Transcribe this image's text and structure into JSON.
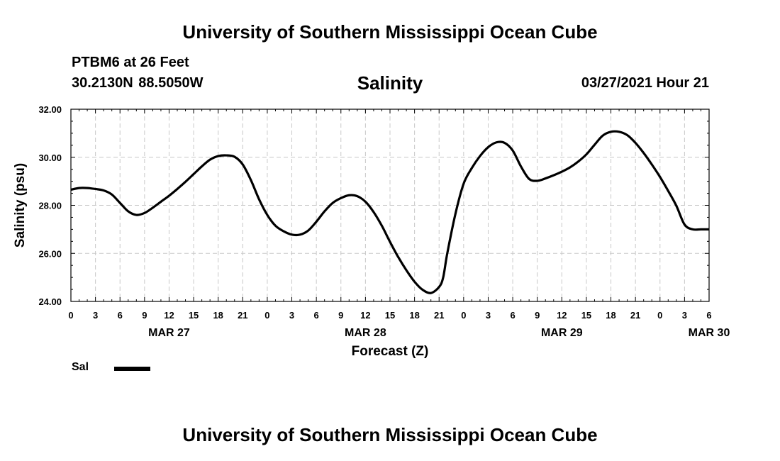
{
  "header": {
    "title": "University of Southern Mississippi Ocean Cube",
    "station_name": "PTBM6 at 26 Feet",
    "station_coords": "30.2130N  88.5050W",
    "chart_title": "Salinity",
    "date_label": "03/27/2021 Hour 21"
  },
  "footer": {
    "title": "University of Southern Mississippi Ocean Cube"
  },
  "legend": {
    "label": "Sal",
    "color": "#000000"
  },
  "chart_data": {
    "type": "line",
    "title": "Salinity",
    "xlabel": "Forecast (Z)",
    "ylabel": "Salinity (psu)",
    "xlim": [
      0,
      78
    ],
    "ylim": [
      24,
      32
    ],
    "y_ticks": [
      24,
      26,
      28,
      30,
      32
    ],
    "y_tick_labels": [
      "24.00",
      "26.00",
      "28.00",
      "30.00",
      "32.00"
    ],
    "x_tick_hours": [
      0,
      3,
      6,
      9,
      12,
      15,
      18,
      21,
      24,
      27,
      30,
      33,
      36,
      39,
      42,
      45,
      48,
      51,
      54,
      57,
      60,
      63,
      66,
      69,
      72,
      75,
      78
    ],
    "x_tick_labels": [
      "0",
      "3",
      "6",
      "9",
      "12",
      "15",
      "18",
      "21",
      "0",
      "3",
      "6",
      "9",
      "12",
      "15",
      "18",
      "21",
      "0",
      "3",
      "6",
      "9",
      "12",
      "15",
      "18",
      "21",
      "0",
      "3",
      "6"
    ],
    "date_labels": [
      {
        "hour": 12,
        "label": "MAR 27"
      },
      {
        "hour": 36,
        "label": "MAR 28"
      },
      {
        "hour": 60,
        "label": "MAR 29"
      },
      {
        "hour": 78,
        "label": "MAR 30"
      }
    ],
    "grid": true,
    "legend_position": "bottom-left",
    "series": [
      {
        "name": "Sal",
        "color": "#000000",
        "x": [
          0,
          1,
          2,
          3,
          4,
          5,
          6,
          7,
          8,
          9,
          10,
          11,
          12,
          13,
          14,
          15,
          16,
          17,
          18,
          19,
          20,
          21,
          22,
          23,
          24,
          25,
          26,
          27,
          28,
          29,
          30,
          31,
          32,
          33,
          34,
          35,
          36,
          37,
          38,
          39,
          40,
          41,
          42,
          43,
          44,
          45,
          45.5,
          46,
          47,
          48,
          49,
          50,
          51,
          52,
          53,
          54,
          55,
          56,
          57,
          58,
          59,
          60,
          61,
          62,
          63,
          64,
          65,
          66,
          67,
          68,
          69,
          70,
          71,
          72,
          73,
          74,
          75,
          76,
          77,
          78
        ],
        "values": [
          28.65,
          28.72,
          28.72,
          28.68,
          28.62,
          28.45,
          28.1,
          27.75,
          27.6,
          27.68,
          27.9,
          28.15,
          28.4,
          28.68,
          28.98,
          29.3,
          29.62,
          29.9,
          30.05,
          30.08,
          30.02,
          29.7,
          29.05,
          28.25,
          27.6,
          27.15,
          26.92,
          26.78,
          26.78,
          26.95,
          27.32,
          27.75,
          28.1,
          28.3,
          28.42,
          28.38,
          28.15,
          27.72,
          27.15,
          26.48,
          25.85,
          25.3,
          24.82,
          24.48,
          24.35,
          24.6,
          25.0,
          26.0,
          27.65,
          28.9,
          29.55,
          30.05,
          30.42,
          30.62,
          30.6,
          30.28,
          29.62,
          29.1,
          29.02,
          29.12,
          29.25,
          29.4,
          29.58,
          29.82,
          30.12,
          30.52,
          30.9,
          31.06,
          31.06,
          30.92,
          30.6,
          30.18,
          29.7,
          29.18,
          28.6,
          27.98,
          27.2,
          27.0,
          27.0,
          27.0
        ]
      }
    ]
  }
}
